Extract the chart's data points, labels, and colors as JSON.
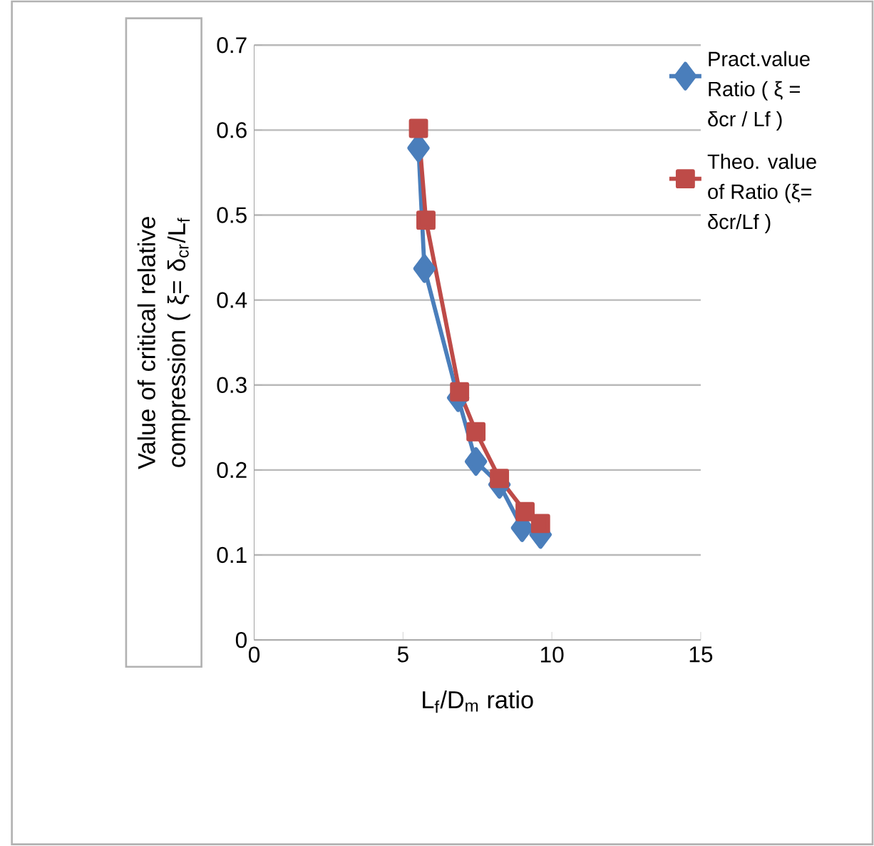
{
  "chart_data": {
    "type": "line",
    "xlabel": "L$_{f}$/D$_{m}$ ratio",
    "ylabel": "Value of critical relative compression   ( ξ= δ$_{cr}$/L$_{f}$",
    "xlim": [
      0,
      15
    ],
    "xticks": [
      0,
      5,
      10,
      15
    ],
    "ylim": [
      0,
      0.7
    ],
    "yticks": [
      0,
      0.1,
      0.2,
      0.3,
      0.4,
      0.5,
      0.6,
      0.7
    ],
    "grid": "y",
    "legend": "right",
    "series": [
      {
        "name": "Pract.value Ratio ( ξ = δcr / Lf )",
        "color": "#4a7ebb",
        "marker": "diamond",
        "x": [
          5.52,
          5.72,
          6.85,
          7.45,
          8.24,
          9.0,
          9.62
        ],
        "values": [
          0.579,
          0.437,
          0.285,
          0.21,
          0.183,
          0.132,
          0.124
        ]
      },
      {
        "name": "Theo. value of Ratio (ξ= δcr/Lf )",
        "color": "#be4b48",
        "marker": "square",
        "x": [
          5.52,
          5.77,
          6.9,
          7.45,
          8.24,
          9.1,
          9.62
        ],
        "values": [
          0.602,
          0.494,
          0.292,
          0.245,
          0.19,
          0.151,
          0.137
        ]
      }
    ]
  }
}
